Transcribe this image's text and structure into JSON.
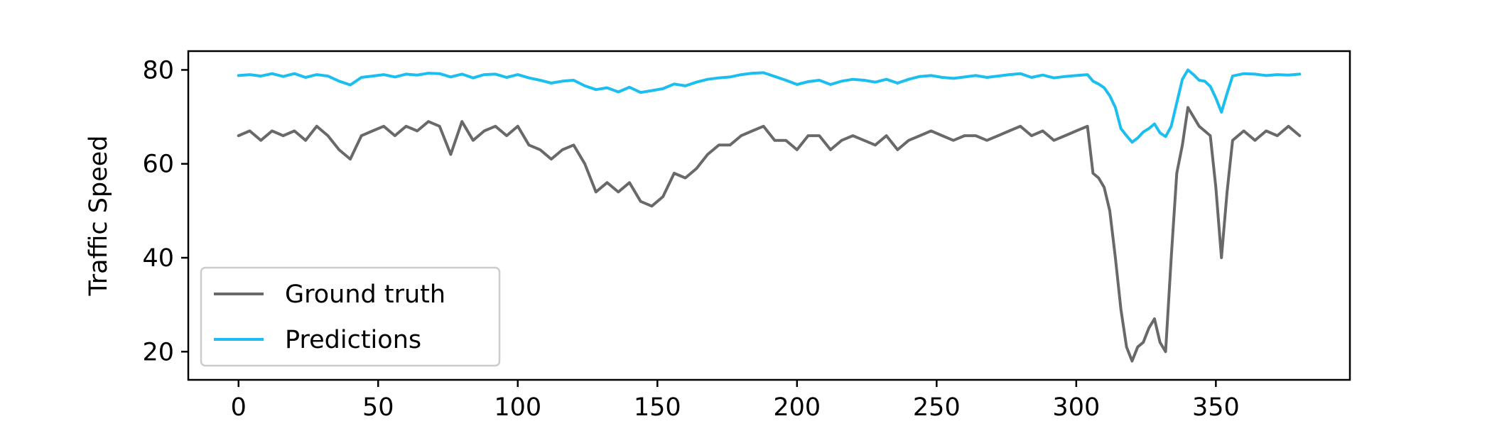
{
  "chart_data": {
    "type": "line",
    "xlabel": "",
    "ylabel": "Traffic Speed",
    "xlim": [
      -18,
      398
    ],
    "ylim": [
      14,
      84
    ],
    "xticks": [
      0,
      50,
      100,
      150,
      200,
      250,
      300,
      350
    ],
    "yticks": [
      20,
      40,
      60,
      80
    ],
    "grid": false,
    "legend_position": "lower-left",
    "series": [
      {
        "name": "Ground truth",
        "color": "#696969",
        "x": [
          0,
          4,
          8,
          12,
          16,
          20,
          24,
          28,
          32,
          36,
          40,
          44,
          48,
          52,
          56,
          60,
          64,
          68,
          72,
          76,
          80,
          84,
          88,
          92,
          96,
          100,
          104,
          108,
          112,
          116,
          120,
          124,
          128,
          132,
          136,
          140,
          144,
          148,
          152,
          156,
          160,
          164,
          168,
          172,
          176,
          180,
          184,
          188,
          192,
          196,
          200,
          204,
          208,
          212,
          216,
          220,
          224,
          228,
          232,
          236,
          240,
          244,
          248,
          252,
          256,
          260,
          264,
          268,
          272,
          276,
          280,
          284,
          288,
          292,
          296,
          300,
          304,
          306,
          308,
          310,
          312,
          314,
          316,
          318,
          320,
          322,
          324,
          326,
          328,
          330,
          332,
          334,
          336,
          338,
          340,
          342,
          344,
          346,
          348,
          350,
          352,
          354,
          356,
          360,
          364,
          368,
          372,
          376,
          380
        ],
        "y": [
          66,
          67,
          65,
          67,
          66,
          67,
          65,
          68,
          66,
          63,
          61,
          66,
          67,
          68,
          66,
          68,
          67,
          69,
          68,
          62,
          69,
          65,
          67,
          68,
          66,
          68,
          64,
          63,
          61,
          63,
          64,
          60,
          54,
          56,
          54,
          56,
          52,
          51,
          53,
          58,
          57,
          59,
          62,
          64,
          64,
          66,
          67,
          68,
          65,
          65,
          63,
          66,
          66,
          63,
          65,
          66,
          65,
          64,
          66,
          63,
          65,
          66,
          67,
          66,
          65,
          66,
          66,
          65,
          66,
          67,
          68,
          66,
          67,
          65,
          66,
          67,
          68,
          58,
          57,
          55,
          50,
          40,
          29,
          21,
          18,
          21,
          22,
          25,
          27,
          22,
          20,
          40,
          58,
          64,
          72,
          70,
          68,
          67,
          66,
          55,
          40,
          54,
          65,
          67,
          65,
          67,
          66,
          68,
          66
        ]
      },
      {
        "name": "Predictions",
        "color": "#1ABFEF",
        "x": [
          0,
          4,
          8,
          12,
          16,
          20,
          24,
          28,
          32,
          36,
          40,
          44,
          48,
          52,
          56,
          60,
          64,
          68,
          72,
          76,
          80,
          84,
          88,
          92,
          96,
          100,
          104,
          108,
          112,
          116,
          120,
          124,
          128,
          132,
          136,
          140,
          144,
          148,
          152,
          156,
          160,
          164,
          168,
          172,
          176,
          180,
          184,
          188,
          192,
          196,
          200,
          204,
          208,
          212,
          216,
          220,
          224,
          228,
          232,
          236,
          240,
          244,
          248,
          252,
          256,
          260,
          264,
          268,
          272,
          276,
          280,
          284,
          288,
          292,
          296,
          300,
          304,
          306,
          308,
          310,
          312,
          314,
          316,
          318,
          320,
          322,
          324,
          326,
          328,
          330,
          332,
          334,
          336,
          338,
          340,
          342,
          344,
          346,
          348,
          350,
          352,
          354,
          356,
          360,
          364,
          368,
          372,
          376,
          380
        ],
        "y": [
          78.8,
          79,
          78.7,
          79.2,
          78.6,
          79.2,
          78.4,
          79,
          78.7,
          77.6,
          76.8,
          78.4,
          78.7,
          79,
          78.5,
          79.1,
          78.9,
          79.3,
          79.2,
          78.5,
          79.1,
          78.3,
          79,
          79.1,
          78.4,
          79,
          78.3,
          77.8,
          77.2,
          77.6,
          77.8,
          76.6,
          75.8,
          76.2,
          75.3,
          76.3,
          75.2,
          75.6,
          76,
          77,
          76.6,
          77.4,
          78,
          78.3,
          78.5,
          79,
          79.3,
          79.4,
          78.6,
          77.8,
          76.9,
          77.5,
          77.8,
          76.9,
          77.6,
          78,
          77.8,
          77.4,
          78,
          77.2,
          78,
          78.6,
          78.8,
          78.4,
          78.2,
          78.5,
          78.8,
          78.4,
          78.7,
          79,
          79.2,
          78.4,
          78.9,
          78.3,
          78.6,
          78.8,
          79,
          77.6,
          77,
          76.2,
          74.5,
          72,
          67.5,
          66,
          64.6,
          65.5,
          66.8,
          67.5,
          68.5,
          66.6,
          65.8,
          68,
          73,
          78,
          80,
          79,
          77.8,
          77.6,
          76.5,
          74,
          71,
          75,
          78.7,
          79.2,
          79.1,
          78.8,
          79,
          78.9,
          79.1
        ]
      }
    ]
  }
}
